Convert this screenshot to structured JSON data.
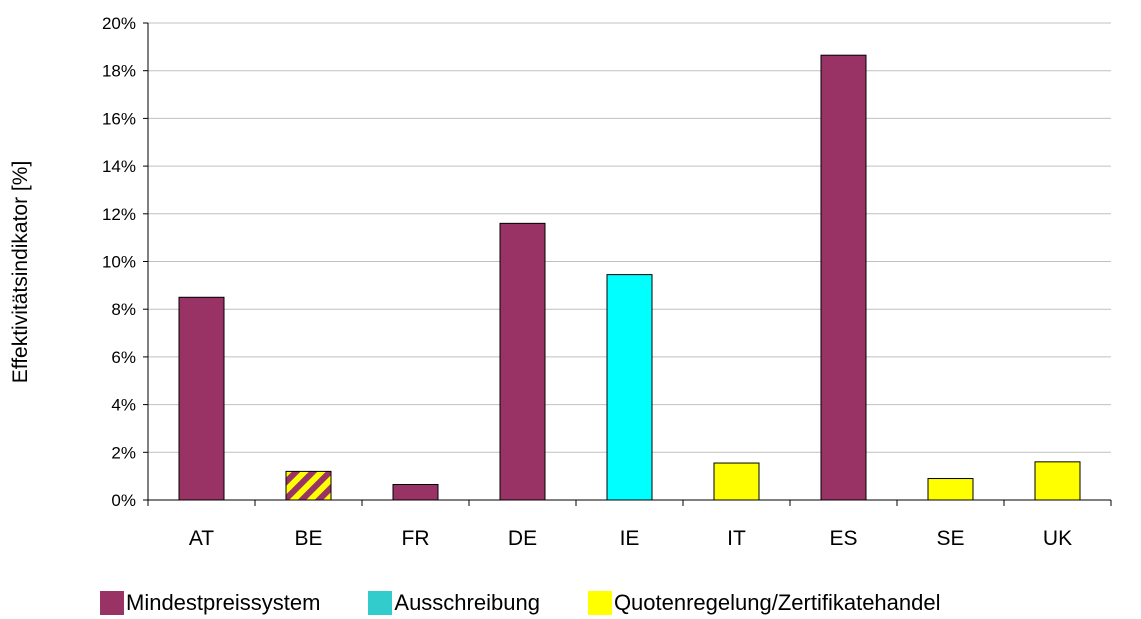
{
  "chart_data": {
    "type": "bar",
    "title": "",
    "xlabel": "",
    "ylabel": "Effektivitätsindikator [%]",
    "ylim": [
      0,
      20
    ],
    "yticks": [
      0,
      2,
      4,
      6,
      8,
      10,
      12,
      14,
      16,
      18,
      20
    ],
    "ytick_labels": [
      "0%",
      "2%",
      "4%",
      "6%",
      "8%",
      "10%",
      "12%",
      "14%",
      "16%",
      "18%",
      "20%"
    ],
    "grid": true,
    "legend_position": "bottom",
    "categories": [
      "AT",
      "BE",
      "FR",
      "DE",
      "IE",
      "IT",
      "ES",
      "SE",
      "UK"
    ],
    "values": [
      8.5,
      1.2,
      0.65,
      11.6,
      9.45,
      1.55,
      18.65,
      0.9,
      1.6
    ],
    "bar_groups": [
      "Mindestpreissystem",
      "Mindestpreissystem+Quotenregelung/Zertifikatehandel",
      "Mindestpreissystem",
      "Mindestpreissystem",
      "Ausschreibung",
      "Quotenregelung/Zertifikatehandel",
      "Mindestpreissystem",
      "Quotenregelung/Zertifikatehandel",
      "Quotenregelung/Zertifikatehandel"
    ],
    "legend": [
      {
        "name": "Mindestpreissystem",
        "color": "#993366"
      },
      {
        "name": "Ausschreibung",
        "color": "#33CCCC"
      },
      {
        "name": "Quotenregelung/Zertifikatehandel",
        "color": "#FFFF00"
      }
    ]
  },
  "colors": {
    "mindestpreissystem": "#993366",
    "ausschreibung_bar": "#00FFFF",
    "ausschreibung_legend": "#33CCCC",
    "quotenregelung": "#FFFF00",
    "gridline": "#c0c0c0",
    "axis": "#000000"
  }
}
